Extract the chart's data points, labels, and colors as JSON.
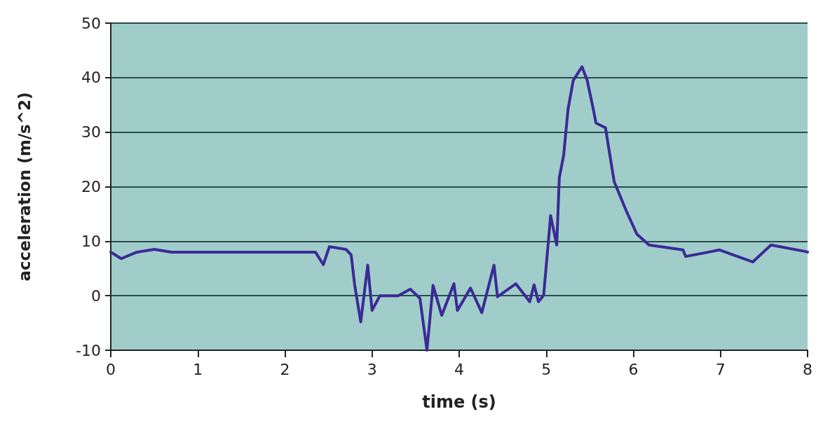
{
  "chart_data": {
    "type": "line",
    "xlabel": "time (s)",
    "ylabel": "acceleration (m/s^2)",
    "x": [
      0,
      0.12,
      0.3,
      0.5,
      0.7,
      1.0,
      1.5,
      2.0,
      2.35,
      2.44,
      2.51,
      2.7,
      2.76,
      2.8,
      2.87,
      2.95,
      3.0,
      3.09,
      3.3,
      3.44,
      3.55,
      3.63,
      3.7,
      3.8,
      3.94,
      3.98,
      4.13,
      4.26,
      4.4,
      4.44,
      4.65,
      4.81,
      4.86,
      4.91,
      4.97,
      5.05,
      5.12,
      5.15,
      5.2,
      5.25,
      5.31,
      5.41,
      5.47,
      5.54,
      5.57,
      5.68,
      5.73,
      5.78,
      5.92,
      6.04,
      6.18,
      6.57,
      6.6,
      6.99,
      7.37,
      7.58,
      7.98,
      8.0
    ],
    "series": [
      {
        "color": "#3b2a96",
        "values": [
          8,
          6.8,
          8,
          8.5,
          8,
          8,
          8,
          8,
          8,
          5.7,
          9,
          8.5,
          7.5,
          2,
          -4.8,
          5.6,
          -2.7,
          0,
          0,
          1.2,
          -0.5,
          -10,
          1.9,
          -3.6,
          2.2,
          -2.7,
          1.4,
          -3.1,
          5.6,
          -0.2,
          2.2,
          -1.1,
          2,
          -1.1,
          0.1,
          14.7,
          9.3,
          21.7,
          25.8,
          34.2,
          39.5,
          42,
          39.5,
          34.2,
          31.7,
          30.8,
          25.8,
          20.9,
          15.5,
          11.3,
          9.3,
          8.4,
          7.2,
          8.4,
          6.2,
          9.3,
          8.1,
          8
        ]
      }
    ],
    "xlim": [
      0,
      8
    ],
    "xticks": [
      0,
      1,
      2,
      3,
      4,
      5,
      6,
      7,
      8
    ],
    "ylim": [
      -10,
      50
    ],
    "yticks": [
      -10,
      0,
      10,
      20,
      30,
      40,
      50
    ],
    "grid": "y",
    "marker": "none",
    "line_style": "solid"
  }
}
